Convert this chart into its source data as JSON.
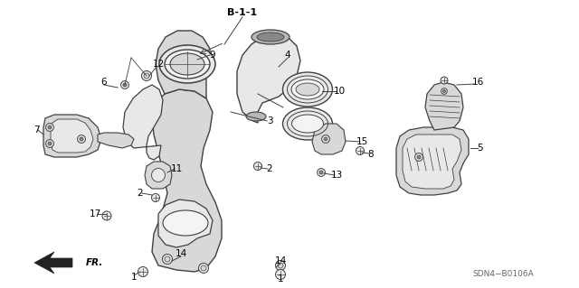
{
  "diagram_code": "SDN4−B0106A",
  "background_color": "#ffffff",
  "line_color": "#404040",
  "figsize": [
    6.4,
    3.19
  ],
  "dpi": 100,
  "section_label": "B-1-1",
  "fr_label": "FR."
}
